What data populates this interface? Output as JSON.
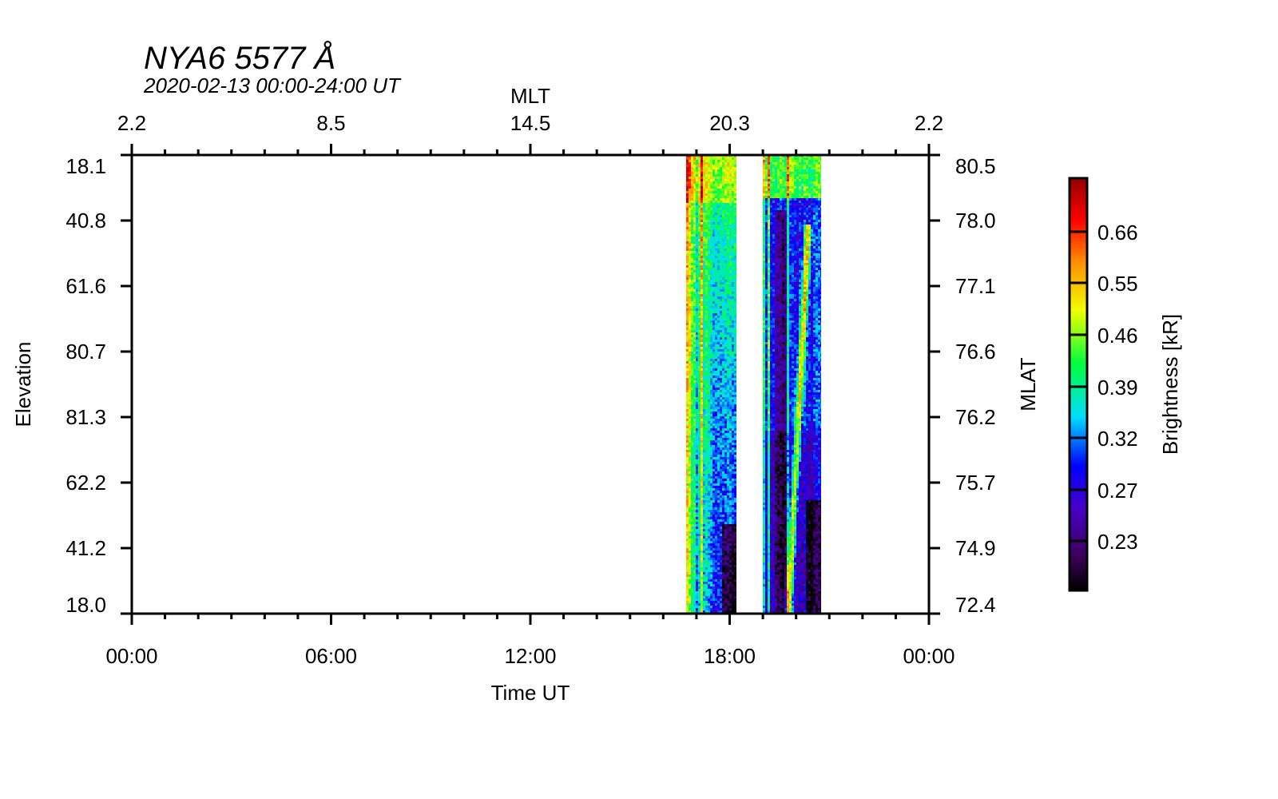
{
  "chart_data": {
    "type": "heatmap",
    "title": "NYA6 5577 Å",
    "subtitle": "2020-02-13 00:00-24:00 UT",
    "xlabel": "Time UT",
    "top_xlabel": "MLT",
    "ylabel": "Elevation",
    "right_ylabel": "MLAT",
    "colorbar_label": "Brightness [kR]",
    "xlim_hours": [
      0,
      24
    ],
    "x_ticks": [
      "00:00",
      "06:00",
      "12:00",
      "18:00",
      "00:00"
    ],
    "mlt_ticks": [
      "2.2",
      "8.5",
      "14.5",
      "20.3",
      "2.2"
    ],
    "elevation_ticks": [
      "18.1",
      "40.8",
      "61.6",
      "80.7",
      "81.3",
      "62.2",
      "41.2",
      "18.0"
    ],
    "mlat_ticks": [
      "80.5",
      "78.0",
      "77.1",
      "76.6",
      "76.2",
      "75.7",
      "74.9",
      "72.4"
    ],
    "colorbar_ticks": [
      "0.66",
      "0.55",
      "0.46",
      "0.39",
      "0.32",
      "0.27",
      "0.23"
    ],
    "colorbar_range": [
      0.19,
      0.75
    ],
    "data_segments": [
      {
        "start_hour": 16.7,
        "end_hour": 18.2,
        "description": "green/yellow emission, red streaks near start, weaker toward south"
      },
      {
        "start_hour": 19.0,
        "end_hour": 20.75,
        "description": "mostly dim blue/purple, bright band near north edge, red arc drifting south"
      }
    ]
  }
}
